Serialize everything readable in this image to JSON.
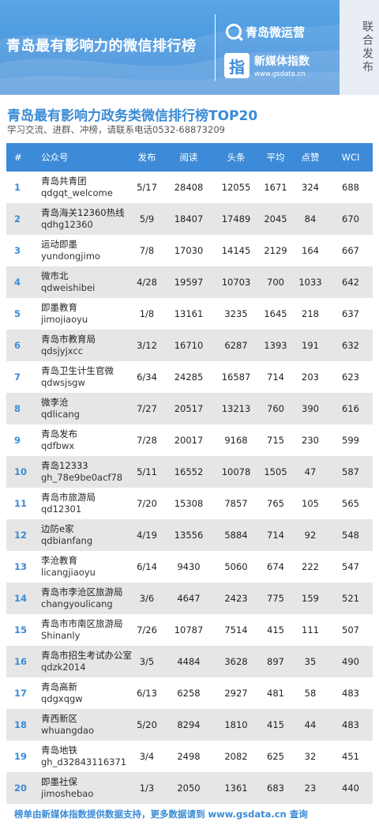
{
  "banner": {
    "title": "青岛最有影响力的微信排行榜",
    "brand1": "青岛微运营",
    "brand2_name": "新媒体指数",
    "brand2_url": "www.gsdata.cn",
    "side_tag": "联合发布",
    "colors": {
      "banner": "#3d8ad8",
      "accent": "#3a8bd6"
    }
  },
  "heading": {
    "title": "青岛最有影响力政务类微信排行榜TOP20",
    "subtitle": "学习交流、进群、冲榜，请联系电话0532-68873209"
  },
  "table": {
    "columns": [
      "#",
      "公众号",
      "发布",
      "阅读",
      "头条",
      "平均",
      "点赞",
      "WCI"
    ],
    "rows": [
      {
        "rank": "1",
        "name": "青岛共青团",
        "id": "qdgqt_welcome",
        "pub": "5/17",
        "read": "28408",
        "head": "12055",
        "avg": "1671",
        "like": "324",
        "wci": "688"
      },
      {
        "rank": "2",
        "name": "青岛海关12360热线",
        "id": "qdhg12360",
        "pub": "5/9",
        "read": "18407",
        "head": "17489",
        "avg": "2045",
        "like": "84",
        "wci": "670"
      },
      {
        "rank": "3",
        "name": "运动即墨",
        "id": "yundongjimo",
        "pub": "7/8",
        "read": "17030",
        "head": "14145",
        "avg": "2129",
        "like": "164",
        "wci": "667"
      },
      {
        "rank": "4",
        "name": "微市北",
        "id": "qdweishibei",
        "pub": "4/28",
        "read": "19597",
        "head": "10703",
        "avg": "700",
        "like": "1033",
        "wci": "642"
      },
      {
        "rank": "5",
        "name": "即墨教育",
        "id": "jimojiaoyu",
        "pub": "1/8",
        "read": "13161",
        "head": "3235",
        "avg": "1645",
        "like": "218",
        "wci": "637"
      },
      {
        "rank": "6",
        "name": "青岛市教育局",
        "id": "qdsjyjxcc",
        "pub": "3/12",
        "read": "16710",
        "head": "6287",
        "avg": "1393",
        "like": "191",
        "wci": "632"
      },
      {
        "rank": "7",
        "name": "青岛卫生计生官微",
        "id": "qdwsjsgw",
        "pub": "6/34",
        "read": "24285",
        "head": "16587",
        "avg": "714",
        "like": "203",
        "wci": "623"
      },
      {
        "rank": "8",
        "name": "微李沧",
        "id": "qdlicang",
        "pub": "7/27",
        "read": "20517",
        "head": "13213",
        "avg": "760",
        "like": "390",
        "wci": "616"
      },
      {
        "rank": "9",
        "name": "青岛发布",
        "id": "qdfbwx",
        "pub": "7/28",
        "read": "20017",
        "head": "9168",
        "avg": "715",
        "like": "230",
        "wci": "599"
      },
      {
        "rank": "10",
        "name": "青岛12333",
        "id": "gh_78e9be0acf78",
        "pub": "5/11",
        "read": "16552",
        "head": "10078",
        "avg": "1505",
        "like": "47",
        "wci": "587"
      },
      {
        "rank": "11",
        "name": "青岛市旅游局",
        "id": "qd12301",
        "pub": "7/20",
        "read": "15308",
        "head": "7857",
        "avg": "765",
        "like": "105",
        "wci": "565"
      },
      {
        "rank": "12",
        "name": "边防e家",
        "id": "qdbianfang",
        "pub": "4/19",
        "read": "13556",
        "head": "5884",
        "avg": "714",
        "like": "92",
        "wci": "548"
      },
      {
        "rank": "13",
        "name": "李沧教育",
        "id": "licangjiaoyu",
        "pub": "6/14",
        "read": "9430",
        "head": "5060",
        "avg": "674",
        "like": "222",
        "wci": "547"
      },
      {
        "rank": "14",
        "name": "青岛市李沧区旅游局",
        "id": "changyoulicang",
        "pub": "3/6",
        "read": "4647",
        "head": "2423",
        "avg": "775",
        "like": "159",
        "wci": "521"
      },
      {
        "rank": "15",
        "name": "青岛市市南区旅游局",
        "id": "Shinanly",
        "pub": "7/26",
        "read": "10787",
        "head": "7514",
        "avg": "415",
        "like": "111",
        "wci": "507"
      },
      {
        "rank": "16",
        "name": "青岛市招生考试办公室",
        "id": "qdzk2014",
        "pub": "3/5",
        "read": "4484",
        "head": "3628",
        "avg": "897",
        "like": "35",
        "wci": "490"
      },
      {
        "rank": "17",
        "name": "青岛高新",
        "id": "qdgxqgw",
        "pub": "6/13",
        "read": "6258",
        "head": "2927",
        "avg": "481",
        "like": "58",
        "wci": "483"
      },
      {
        "rank": "18",
        "name": "青西新区",
        "id": "whuangdao",
        "pub": "5/20",
        "read": "8294",
        "head": "1810",
        "avg": "415",
        "like": "44",
        "wci": "483"
      },
      {
        "rank": "19",
        "name": "青岛地铁",
        "id": "gh_d32843116371",
        "pub": "3/4",
        "read": "2498",
        "head": "2082",
        "avg": "625",
        "like": "32",
        "wci": "451"
      },
      {
        "rank": "20",
        "name": "即墨社保",
        "id": "jimoshebao",
        "pub": "1/3",
        "read": "2050",
        "head": "1361",
        "avg": "683",
        "like": "23",
        "wci": "440"
      }
    ]
  },
  "footer": {
    "note": "榜单由新媒体指数提供数据支持，更多数据请到 www.gsdata.cn 查询"
  }
}
